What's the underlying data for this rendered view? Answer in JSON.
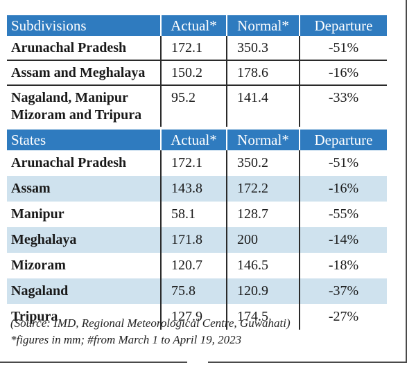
{
  "subdivisions_table": {
    "headers": [
      "Subdivisions",
      "Actual*",
      "Normal*",
      "Departure"
    ],
    "rows": [
      {
        "name": "Arunachal Pradesh",
        "actual": "172.1",
        "normal": "350.3",
        "departure": "-51%"
      },
      {
        "name": "Assam and Meghalaya",
        "actual": "150.2",
        "normal": "178.6",
        "departure": "-16%"
      },
      {
        "name": "Nagaland, Manipur\nMizoram and Tripura",
        "actual": "95.2",
        "normal": "141.4",
        "departure": "-33%"
      }
    ]
  },
  "states_table": {
    "headers": [
      "States",
      "Actual*",
      "Normal*",
      "Departure"
    ],
    "rows": [
      {
        "name": "Arunachal Pradesh",
        "actual": "172.1",
        "normal": "350.2",
        "departure": "-51%"
      },
      {
        "name": "Assam",
        "actual": "143.8",
        "normal": "172.2",
        "departure": "-16%"
      },
      {
        "name": "Manipur",
        "actual": "58.1",
        "normal": "128.7",
        "departure": "-55%"
      },
      {
        "name": "Meghalaya",
        "actual": "171.8",
        "normal": "200",
        "departure": "-14%"
      },
      {
        "name": "Mizoram",
        "actual": "120.7",
        "normal": "146.5",
        "departure": "-18%"
      },
      {
        "name": "Nagaland",
        "actual": "75.8",
        "normal": "120.9",
        "departure": "-37%"
      },
      {
        "name": "Tripura",
        "actual": "127.9",
        "normal": "174.5",
        "departure": "-27%"
      }
    ]
  },
  "notes": {
    "source": "(Source:  IMD, Regional Meteorological Centre, Guwahati)",
    "footnote": "*figures in mm; #from March 1 to April 19, 2023"
  },
  "colors": {
    "header_blue": "#2f7bbf",
    "row_shade": "#cfe2ee"
  }
}
